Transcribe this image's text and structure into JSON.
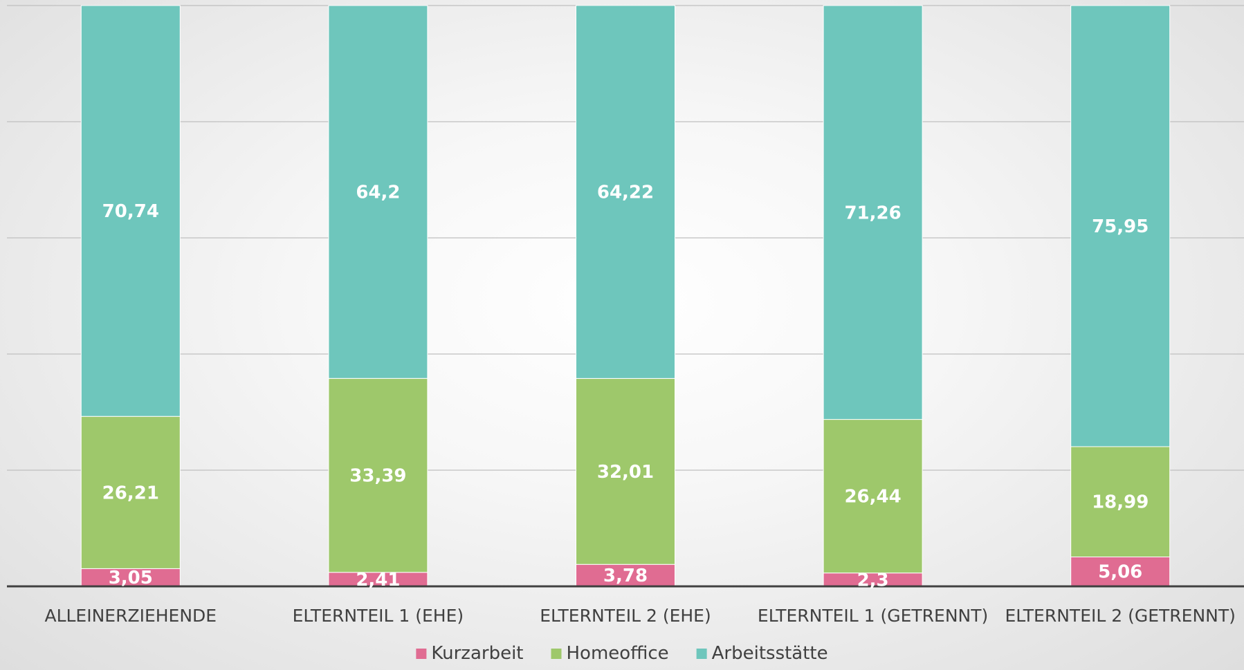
{
  "chart_data": {
    "type": "bar",
    "stacked": true,
    "categories": [
      "ALLEINERZIEHENDE",
      "ELTERNTEIL 1 (EHE)",
      "ELTERNTEIL 2 (EHE)",
      "ELTERNTEIL 1 (GETRENNT)",
      "ELTERNTEIL 2 (GETRENNT)"
    ],
    "series": [
      {
        "name": "Kurzarbeit",
        "color": "#e06c92",
        "values": [
          3.05,
          2.41,
          3.78,
          2.3,
          5.06
        ],
        "labels": [
          "3,05",
          "2,41",
          "3,78",
          "2,3",
          "5,06"
        ]
      },
      {
        "name": "Homeoffice",
        "color": "#9ec86b",
        "values": [
          26.21,
          33.39,
          32.01,
          26.44,
          18.99
        ],
        "labels": [
          "26,21",
          "33,39",
          "32,01",
          "26,44",
          "18,99"
        ]
      },
      {
        "name": "Arbeitsstätte",
        "color": "#6ec6bc",
        "values": [
          70.74,
          64.2,
          64.22,
          71.26,
          75.95
        ],
        "labels": [
          "70,74",
          "64,2",
          "64,22",
          "71,26",
          "75,95"
        ]
      }
    ],
    "ylim": [
      0,
      100
    ],
    "y_gridlines": [
      0,
      20,
      40,
      60,
      80,
      100
    ],
    "grid": true,
    "legend_position": "bottom",
    "title": "",
    "xlabel": "",
    "ylabel": ""
  }
}
